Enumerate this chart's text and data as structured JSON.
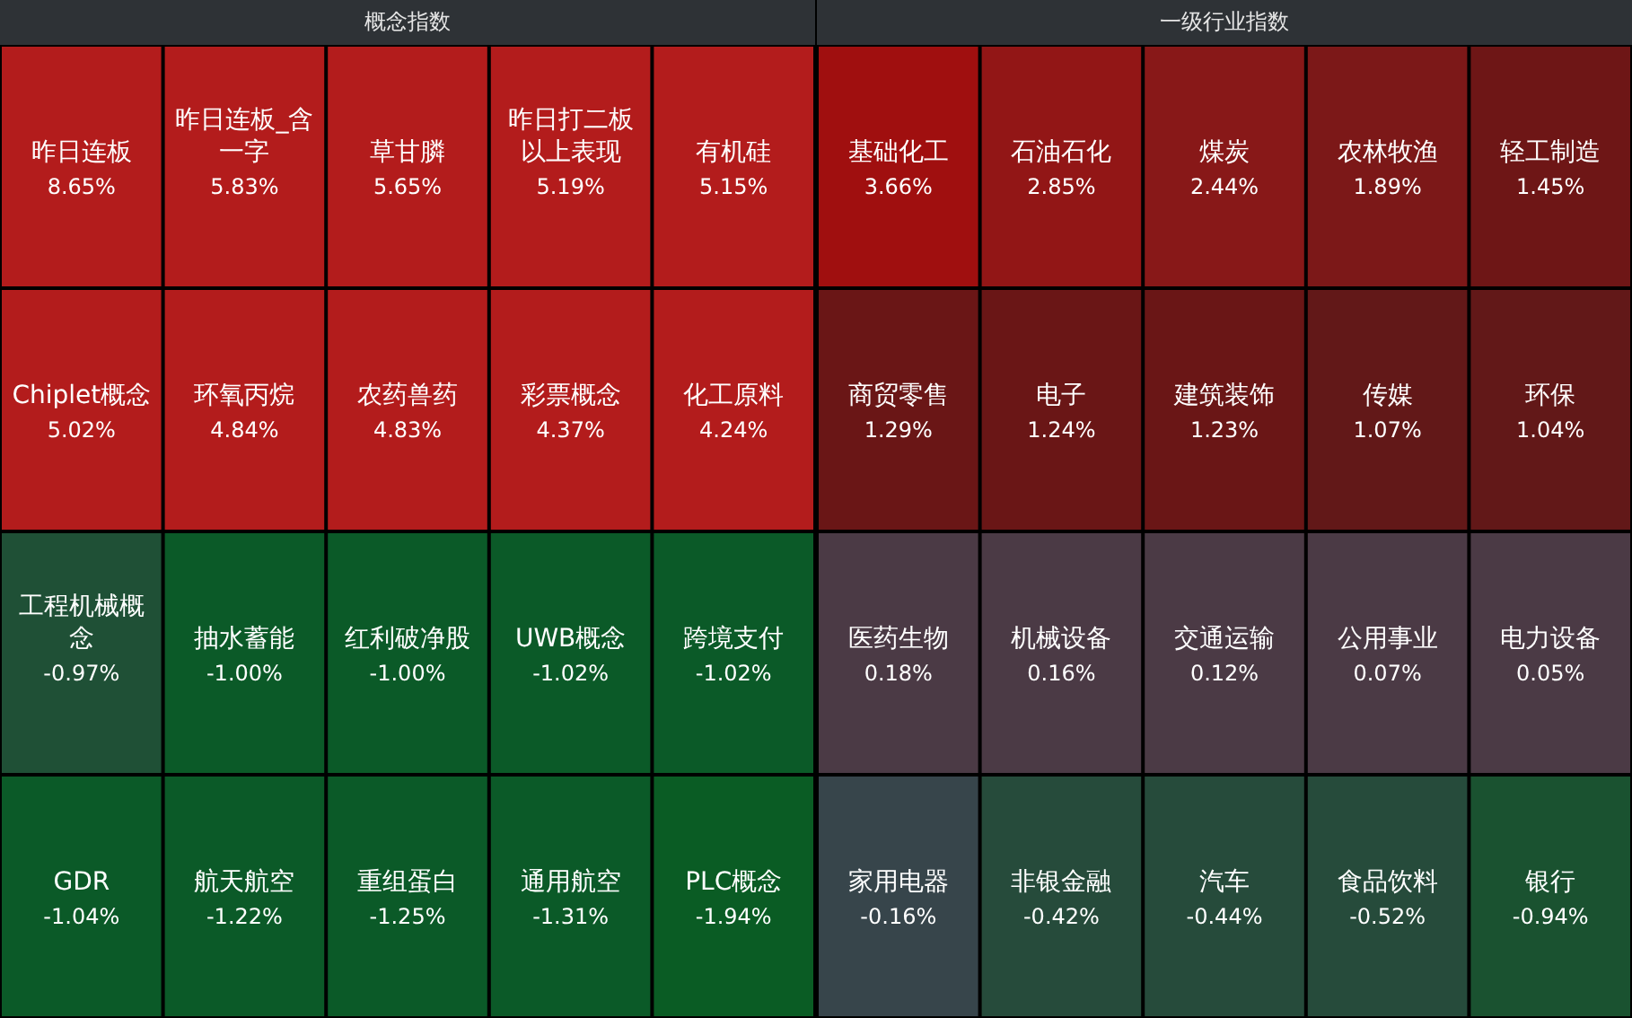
{
  "chart_data": [
    {
      "type": "other",
      "title": "概念指数",
      "categories": [
        "昨日连板",
        "昨日连板_含一字",
        "草甘膦",
        "昨日打二板以上表现",
        "有机硅",
        "Chiplet概念",
        "环氧丙烷",
        "农药兽药",
        "彩票概念",
        "化工原料",
        "工程机械概念",
        "抽水蓄能",
        "红利破净股",
        "UWB概念",
        "跨境支付",
        "GDR",
        "航天航空",
        "重组蛋白",
        "通用航空",
        "PLC概念"
      ],
      "values": [
        8.65,
        5.83,
        5.65,
        5.19,
        5.15,
        5.02,
        4.84,
        4.83,
        4.37,
        4.24,
        -0.97,
        -1.0,
        -1.0,
        -1.02,
        -1.02,
        -1.04,
        -1.22,
        -1.25,
        -1.31,
        -1.94
      ],
      "value_labels": [
        "8.65%",
        "5.83%",
        "5.65%",
        "5.19%",
        "5.15%",
        "5.02%",
        "4.84%",
        "4.83%",
        "4.37%",
        "4.24%",
        "-0.97%",
        "-1.00%",
        "-1.00%",
        "-1.02%",
        "-1.02%",
        "-1.04%",
        "-1.22%",
        "-1.25%",
        "-1.31%",
        "-1.94%"
      ],
      "colors": [
        "#b31c1c",
        "#b31c1c",
        "#b31c1c",
        "#b31c1c",
        "#b31c1c",
        "#b31c1c",
        "#b31c1c",
        "#b31c1c",
        "#b31c1c",
        "#b31c1c",
        "#1f5036",
        "#0b5a28",
        "#0b5a28",
        "#0b5a28",
        "#0b5a28",
        "#0b5a28",
        "#0b5a28",
        "#0b5a28",
        "#0b5a28",
        "#0a5c24"
      ]
    },
    {
      "type": "other",
      "title": "一级行业指数",
      "categories": [
        "基础化工",
        "石油石化",
        "煤炭",
        "农林牧渔",
        "轻工制造",
        "商贸零售",
        "电子",
        "建筑装饰",
        "传媒",
        "环保",
        "医药生物",
        "机械设备",
        "交通运输",
        "公用事业",
        "电力设备",
        "家用电器",
        "非银金融",
        "汽车",
        "食品饮料",
        "银行"
      ],
      "values": [
        3.66,
        2.85,
        2.44,
        1.89,
        1.45,
        1.29,
        1.24,
        1.23,
        1.07,
        1.04,
        0.18,
        0.16,
        0.12,
        0.07,
        0.05,
        -0.16,
        -0.42,
        -0.44,
        -0.52,
        -0.94
      ],
      "value_labels": [
        "3.66%",
        "2.85%",
        "2.44%",
        "1.89%",
        "1.45%",
        "1.29%",
        "1.24%",
        "1.23%",
        "1.07%",
        "1.04%",
        "0.18%",
        "0.16%",
        "0.12%",
        "0.07%",
        "0.05%",
        "-0.16%",
        "-0.42%",
        "-0.44%",
        "-0.52%",
        "-0.94%"
      ],
      "colors": [
        "#a00f0f",
        "#921616",
        "#881818",
        "#7c1818",
        "#6e1616",
        "#6a1616",
        "#6a1616",
        "#6a1616",
        "#621818",
        "#621818",
        "#4b3a45",
        "#4b3a45",
        "#4b3a45",
        "#4b3a45",
        "#4b3a45",
        "#37454b",
        "#264b3b",
        "#264b3b",
        "#264b3b",
        "#1a5230"
      ]
    }
  ]
}
